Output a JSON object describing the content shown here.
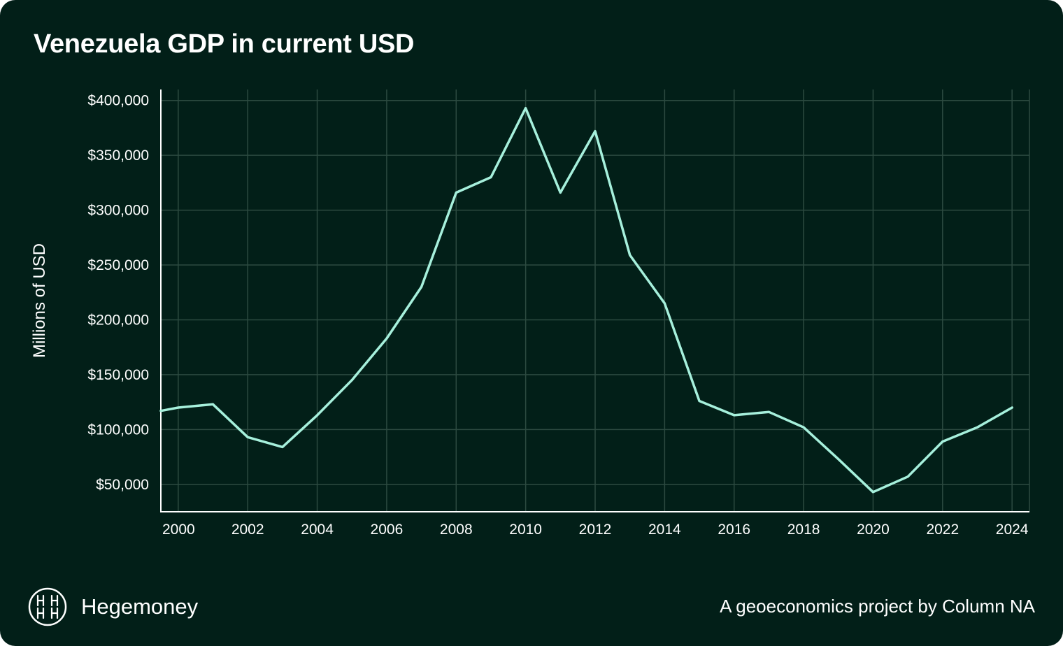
{
  "header": {
    "title": "Venezuela GDP in current USD"
  },
  "footer": {
    "brand_name": "Hegemoney",
    "credit": "A geoeconomics project by Column NA",
    "logo_icon": "hegemoney-logo-icon"
  },
  "colors": {
    "background": "#021f18",
    "line": "#a6f0dc",
    "grid": "#2c4a40",
    "text": "#ffffff"
  },
  "chart_data": {
    "type": "line",
    "title": "Venezuela GDP in current USD",
    "xlabel": "",
    "ylabel": "Millions of USD",
    "x": [
      1999.5,
      2000,
      2001,
      2002,
      2003,
      2004,
      2005,
      2006,
      2007,
      2008,
      2009,
      2010,
      2011,
      2012,
      2013,
      2014,
      2015,
      2016,
      2017,
      2018,
      2019,
      2020,
      2021,
      2022,
      2023,
      2024
    ],
    "series": [
      {
        "name": "GDP",
        "values": [
          117000,
          120000,
          123000,
          93000,
          84000,
          113000,
          145000,
          183000,
          230000,
          316000,
          330000,
          393000,
          316000,
          372000,
          259000,
          215000,
          126000,
          113000,
          116000,
          102000,
          73000,
          43000,
          57000,
          89000,
          102000,
          120000
        ]
      }
    ],
    "xlim": [
      1999.5,
      2024.5
    ],
    "ylim": [
      25000,
      410000
    ],
    "y_ticks": [
      50000,
      100000,
      150000,
      200000,
      250000,
      300000,
      350000,
      400000
    ],
    "y_tick_labels": [
      "$50,000",
      "$100,000",
      "$150,000",
      "$200,000",
      "$250,000",
      "$300,000",
      "$350,000",
      "$400,000"
    ],
    "x_ticks": [
      2000,
      2002,
      2004,
      2006,
      2008,
      2010,
      2012,
      2014,
      2016,
      2018,
      2020,
      2022,
      2024
    ],
    "x_tick_labels": [
      "2000",
      "2002",
      "2004",
      "2006",
      "2008",
      "2010",
      "2012",
      "2014",
      "2016",
      "2018",
      "2020",
      "2022",
      "2024"
    ],
    "grid": true,
    "legend": "none"
  }
}
